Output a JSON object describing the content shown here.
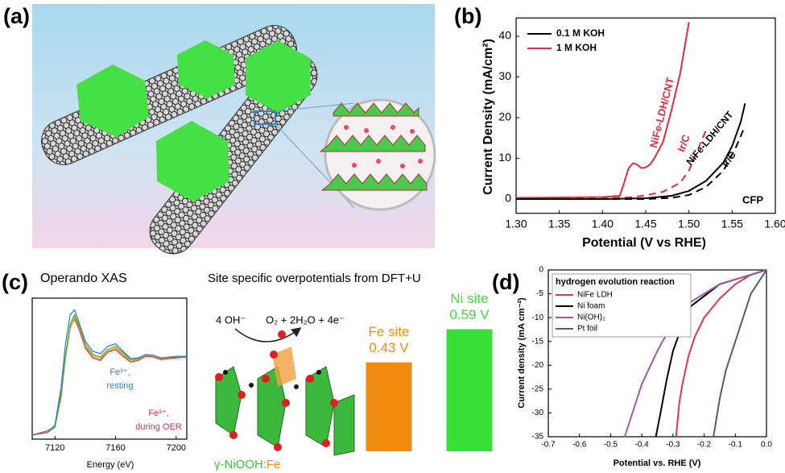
{
  "panel_labels": [
    "(a)",
    "(b)",
    "(c)",
    "(d)"
  ],
  "dft": {
    "reactant": "4 OH⁻",
    "product": "O₂ + 2H₂O + 4e⁻",
    "material_host": "γ-NiOOH:",
    "material_dopant": "Fe"
  },
  "chart_data": [
    {
      "type": "line",
      "xlabel": "Potential (V vs RHE)",
      "ylabel": "Current Density (mA/cm²)",
      "xlim": [
        1.3,
        1.6
      ],
      "ylim": [
        -3.5,
        44.5
      ],
      "xticks": [
        {
          "value": 1.3,
          "label": "1.30"
        },
        1.35,
        {
          "value": 1.4,
          "label": "1.40"
        },
        1.45,
        {
          "value": 1.5,
          "label": "1.50"
        },
        1.55,
        {
          "value": 1.6,
          "label": "1.60"
        }
      ],
      "yticks": [
        0,
        10,
        20,
        30,
        40
      ],
      "legend": [
        {
          "label": "0.1 M KOH",
          "color": "#000000"
        },
        {
          "label": "1 M KOH",
          "color": "#e8283c"
        }
      ],
      "series": [
        {
          "color": "#e8283c",
          "dash": false,
          "x": [
            1.3,
            1.35,
            1.4,
            1.42,
            1.425,
            1.43,
            1.435,
            1.44,
            1.445,
            1.45,
            1.455,
            1.46,
            1.47,
            1.48,
            1.49,
            1.5
          ],
          "values": [
            0.3,
            0.4,
            0.5,
            0.8,
            4,
            7.5,
            8.8,
            8.5,
            7.6,
            7.8,
            8.5,
            10,
            14,
            22,
            31,
            43.5
          ]
        },
        {
          "color": "#e8283c",
          "dash": true,
          "x": [
            1.3,
            1.4,
            1.43,
            1.45,
            1.47,
            1.49,
            1.5,
            1.51,
            1.52
          ],
          "values": [
            0.2,
            0.2,
            0.4,
            0.9,
            1.8,
            4,
            7,
            12,
            17
          ]
        },
        {
          "color": "#000000",
          "dash": false,
          "x": [
            1.3,
            1.4,
            1.45,
            1.48,
            1.5,
            1.52,
            1.54,
            1.55,
            1.56,
            1.565
          ],
          "values": [
            0,
            0,
            0.2,
            0.8,
            2,
            4.5,
            9,
            13,
            19,
            23.5
          ]
        },
        {
          "color": "#000000",
          "dash": true,
          "x": [
            1.3,
            1.45,
            1.48,
            1.5,
            1.52,
            1.54,
            1.555,
            1.565
          ],
          "values": [
            0,
            0,
            0.3,
            1,
            3,
            7,
            13,
            18
          ]
        }
      ],
      "annotations": [
        {
          "text": "NiFe-LDH/CNT",
          "color": "#e8283c"
        },
        {
          "text": "Ir/C",
          "color": "#e8283c"
        },
        {
          "text": "NiFe-LDH/CNT",
          "color": "#000000"
        },
        {
          "text": "Ir/C",
          "color": "#000000"
        },
        {
          "text": "CFP",
          "color": "#000000"
        }
      ]
    },
    {
      "type": "line",
      "title": "Operando XAS",
      "xlabel": "Energy (eV)",
      "xlim": [
        7105,
        7207
      ],
      "ylim": [
        0,
        1.7
      ],
      "xticks": [
        7120,
        7160,
        7200
      ],
      "series": [
        {
          "color": "#e03030",
          "x": [
            7105,
            7115,
            7120,
            7124,
            7127,
            7130,
            7133,
            7136,
            7140,
            7145,
            7150,
            7155,
            7160,
            7165,
            7170,
            7175,
            7180,
            7185,
            7190,
            7200,
            7207
          ],
          "values": [
            0.05,
            0.1,
            0.15,
            0.55,
            1.0,
            1.35,
            1.45,
            1.32,
            1.1,
            0.98,
            0.95,
            1.05,
            1.08,
            1.0,
            0.93,
            0.95,
            1.0,
            0.99,
            0.96,
            0.98,
            0.99
          ]
        },
        {
          "color": "#f0a020",
          "x": [
            7105,
            7115,
            7120,
            7124,
            7127,
            7130,
            7133,
            7136,
            7140,
            7145,
            7150,
            7155,
            7160,
            7165,
            7170,
            7175,
            7180,
            7185,
            7190,
            7200,
            7207
          ],
          "values": [
            0.05,
            0.08,
            0.14,
            0.5,
            0.98,
            1.33,
            1.47,
            1.35,
            1.12,
            1.0,
            0.97,
            1.06,
            1.1,
            1.02,
            0.94,
            0.96,
            1.01,
            1.0,
            0.97,
            0.99,
            1.0
          ]
        },
        {
          "color": "#40b040",
          "x": [
            7105,
            7115,
            7120,
            7124,
            7127,
            7130,
            7133,
            7136,
            7140,
            7145,
            7150,
            7155,
            7160,
            7165,
            7170,
            7175,
            7180,
            7185,
            7190,
            7200,
            7207
          ],
          "values": [
            0.05,
            0.08,
            0.15,
            0.52,
            1.02,
            1.38,
            1.5,
            1.37,
            1.15,
            1.02,
            0.99,
            1.08,
            1.12,
            1.04,
            0.96,
            0.97,
            1.02,
            1.01,
            0.98,
            1.0,
            1.0
          ]
        },
        {
          "color": "#3a7fd0",
          "x": [
            7105,
            7115,
            7120,
            7124,
            7127,
            7130,
            7133,
            7136,
            7140,
            7145,
            7150,
            7155,
            7160,
            7165,
            7170,
            7175,
            7180,
            7185,
            7190,
            7200,
            7207
          ],
          "values": [
            0.05,
            0.08,
            0.17,
            0.62,
            1.15,
            1.5,
            1.56,
            1.4,
            1.18,
            1.06,
            1.03,
            1.12,
            1.15,
            1.06,
            0.97,
            0.98,
            1.02,
            1.01,
            0.98,
            0.99,
            1.0
          ]
        }
      ],
      "annotations": [
        {
          "lines": [
            "Fe³⁺,",
            "resting"
          ],
          "color": "#3a7fd0"
        },
        {
          "lines": [
            "Fe³⁺,",
            "during OER"
          ],
          "color": "#e8285a"
        }
      ]
    },
    {
      "type": "bar",
      "title": "Site specific overpotentials from DFT+U",
      "ylim": [
        0,
        0.6
      ],
      "categories": [
        "Fe site",
        "Ni site"
      ],
      "values": [
        0.43,
        0.59
      ],
      "value_labels": [
        "0.43 V",
        "0.59 V"
      ],
      "colors": [
        "#f28c10",
        "#38e038"
      ]
    },
    {
      "type": "line",
      "xlabel": "Potential vs. RHE (V)",
      "ylabel": "Current density (mA cm⁻²)",
      "xlim": [
        -0.7,
        0
      ],
      "ylim": [
        -35,
        0
      ],
      "xticks": [
        -0.7,
        -0.6,
        -0.5,
        -0.4,
        -0.3,
        -0.2,
        -0.1,
        {
          "value": 0,
          "label": "0.0"
        }
      ],
      "yticks": [
        0,
        -5,
        -10,
        -15,
        -20,
        -25,
        -30,
        -35
      ],
      "legend_title": "hydrogen evolution reaction",
      "series": [
        {
          "name": "NiFe LDH",
          "color": "#e8354a",
          "x": [
            0,
            -0.05,
            -0.1,
            -0.15,
            -0.2,
            -0.23,
            -0.25,
            -0.27,
            -0.28,
            -0.29
          ],
          "values": [
            0,
            -1,
            -3,
            -6,
            -10,
            -14,
            -18,
            -24,
            -28,
            -35
          ]
        },
        {
          "name": "Ni foam",
          "color": "#000000",
          "x": [
            0,
            -0.05,
            -0.15,
            -0.25,
            -0.3,
            -0.32,
            -0.34,
            -0.355
          ],
          "values": [
            0,
            -1,
            -3,
            -8,
            -17,
            -23,
            -30,
            -35
          ]
        },
        {
          "name": "Ni(OH)₂",
          "color": "#a05aa8",
          "x": [
            0,
            -0.05,
            -0.15,
            -0.25,
            -0.3,
            -0.35,
            -0.4,
            -0.42,
            -0.455
          ],
          "values": [
            0,
            -1,
            -3,
            -7,
            -11,
            -17,
            -24,
            -28,
            -35
          ]
        },
        {
          "name": "Pt foil",
          "color": "#4a5d8a",
          "x": [
            0,
            -0.05,
            -0.1,
            -0.13,
            -0.15,
            -0.17
          ],
          "values": [
            0,
            -5,
            -15,
            -21,
            -27,
            -35
          ]
        }
      ]
    }
  ]
}
